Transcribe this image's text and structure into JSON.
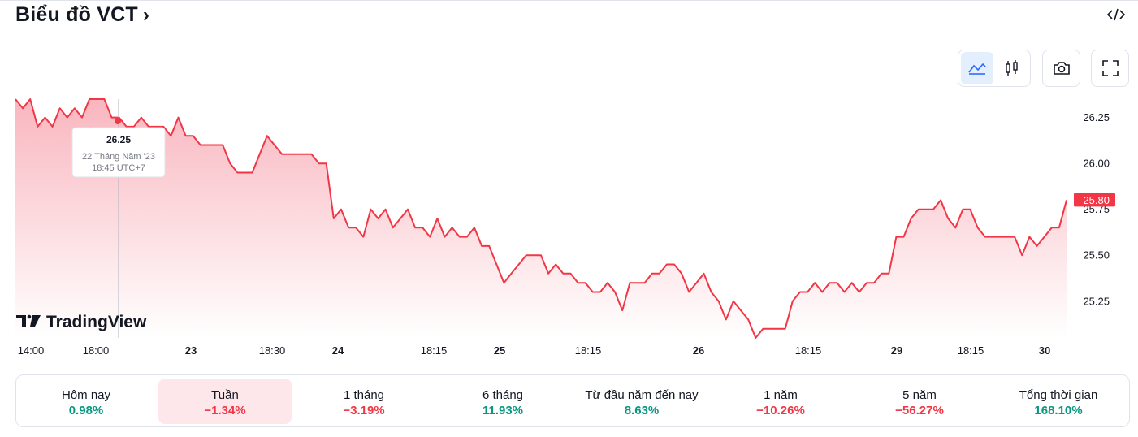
{
  "header": {
    "title": "Biểu đồ VCT",
    "title_chevron": "›"
  },
  "toolbar": {
    "items": [
      {
        "icon": "area-chart-icon",
        "active": true
      },
      {
        "icon": "candlestick-icon",
        "active": false
      },
      {
        "icon": "camera-icon"
      },
      {
        "icon": "fullscreen-icon"
      },
      {
        "icon": "embed-code-icon"
      }
    ]
  },
  "watermark": {
    "text": "TradingView"
  },
  "tooltip": {
    "value": "26.25",
    "date": "22 Tháng Năm '23",
    "time": "18:45 UTC+7"
  },
  "colors": {
    "line": "#f23645",
    "fill_top": "#f9b6bf",
    "fill_bottom": "#ffffff",
    "positive": "#089981",
    "negative": "#f23645",
    "accent": "#2962ff"
  },
  "chart_data": {
    "type": "area",
    "last_price": "25.80",
    "ylim": [
      25.1,
      26.35
    ],
    "y_ticks": [
      "25.25",
      "25.50",
      "25.75",
      "26.00",
      "26.25"
    ],
    "x_ticks": [
      {
        "label": "14:00",
        "bold": false
      },
      {
        "label": "18:00",
        "bold": false
      },
      {
        "label": "23",
        "bold": true
      },
      {
        "label": "18:30",
        "bold": false
      },
      {
        "label": "24",
        "bold": true
      },
      {
        "label": "18:15",
        "bold": false
      },
      {
        "label": "25",
        "bold": true
      },
      {
        "label": "18:15",
        "bold": false
      },
      {
        "label": "26",
        "bold": true
      },
      {
        "label": "18:15",
        "bold": false
      },
      {
        "label": "29",
        "bold": true
      },
      {
        "label": "18:15",
        "bold": false
      },
      {
        "label": "30",
        "bold": true
      }
    ],
    "values": [
      26.35,
      26.3,
      26.35,
      26.2,
      26.25,
      26.2,
      26.3,
      26.25,
      26.3,
      26.25,
      26.35,
      26.35,
      26.35,
      26.25,
      26.25,
      26.2,
      26.2,
      26.25,
      26.2,
      26.2,
      26.2,
      26.15,
      26.25,
      26.15,
      26.15,
      26.1,
      26.1,
      26.1,
      26.1,
      26.0,
      25.95,
      25.95,
      25.95,
      26.05,
      26.15,
      26.1,
      26.05,
      26.05,
      26.05,
      26.05,
      26.05,
      26.0,
      26.0,
      25.7,
      25.75,
      25.65,
      25.65,
      25.6,
      25.75,
      25.7,
      25.75,
      25.65,
      25.7,
      25.75,
      25.65,
      25.65,
      25.6,
      25.7,
      25.6,
      25.65,
      25.6,
      25.6,
      25.65,
      25.55,
      25.55,
      25.45,
      25.35,
      25.4,
      25.45,
      25.5,
      25.5,
      25.5,
      25.4,
      25.45,
      25.4,
      25.4,
      25.35,
      25.35,
      25.3,
      25.3,
      25.35,
      25.3,
      25.2,
      25.35,
      25.35,
      25.35,
      25.4,
      25.4,
      25.45,
      25.45,
      25.4,
      25.3,
      25.35,
      25.4,
      25.3,
      25.25,
      25.15,
      25.25,
      25.2,
      25.15,
      25.05,
      25.1,
      25.1,
      25.1,
      25.1,
      25.25,
      25.3,
      25.3,
      25.35,
      25.3,
      25.35,
      25.35,
      25.3,
      25.35,
      25.3,
      25.35,
      25.35,
      25.4,
      25.4,
      25.6,
      25.6,
      25.7,
      25.75,
      25.75,
      25.75,
      25.8,
      25.7,
      25.65,
      25.75,
      25.75,
      25.65,
      25.6,
      25.6,
      25.6,
      25.6,
      25.6,
      25.5,
      25.6,
      25.55,
      25.6,
      25.65,
      25.65,
      25.8
    ]
  },
  "performance": [
    {
      "label": "Hôm nay",
      "value": "0.98%",
      "positive": true,
      "selected": false
    },
    {
      "label": "Tuần",
      "value": "−1.34%",
      "positive": false,
      "selected": true
    },
    {
      "label": "1 tháng",
      "value": "−3.19%",
      "positive": false,
      "selected": false
    },
    {
      "label": "6 tháng",
      "value": "11.93%",
      "positive": true,
      "selected": false
    },
    {
      "label": "Từ đầu năm đến nay",
      "value": "8.63%",
      "positive": true,
      "selected": false
    },
    {
      "label": "1 năm",
      "value": "−10.26%",
      "positive": false,
      "selected": false
    },
    {
      "label": "5 năm",
      "value": "−56.27%",
      "positive": false,
      "selected": false
    },
    {
      "label": "Tổng thời gian",
      "value": "168.10%",
      "positive": true,
      "selected": false
    }
  ]
}
